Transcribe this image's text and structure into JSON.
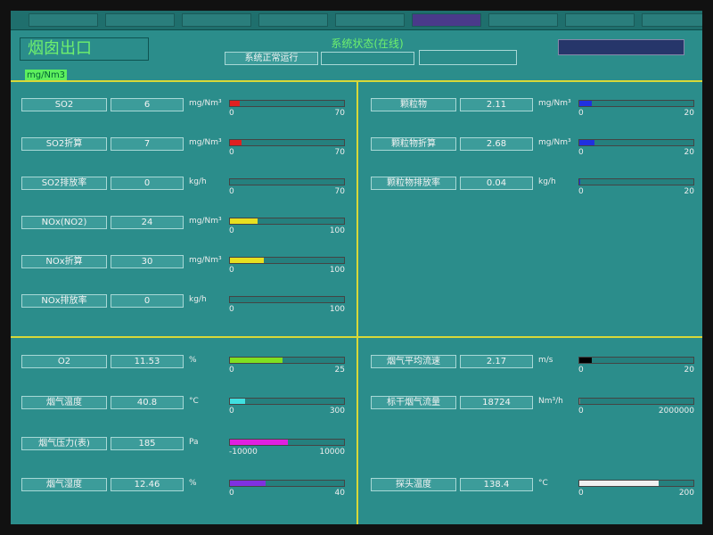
{
  "header": {
    "title": "烟囱出口",
    "status_title": "系统状态(在线)",
    "status": "系统正常运行",
    "unit_tag": "mg/Nm3"
  },
  "panels": [
    {
      "items": [
        {
          "label": "SO2",
          "value": 6,
          "unit": "mg/Nm³",
          "min": 0,
          "max": 70,
          "color": "#e02020"
        },
        {
          "label": "SO2折算",
          "value": 7,
          "unit": "mg/Nm³",
          "min": 0,
          "max": 70,
          "color": "#e02020"
        },
        {
          "label": "SO2排放率",
          "value": 0,
          "unit": "kg/h",
          "min": 0,
          "max": 70,
          "color": "#e02020"
        },
        {
          "label": "NOx(NO2)",
          "value": 24,
          "unit": "mg/Nm³",
          "min": 0,
          "max": 100,
          "color": "#e8e020"
        },
        {
          "label": "NOx折算",
          "value": 30,
          "unit": "mg/Nm³",
          "min": 0,
          "max": 100,
          "color": "#e8e020"
        },
        {
          "label": "NOx排放率",
          "value": 0,
          "unit": "kg/h",
          "min": 0,
          "max": 100,
          "color": "#e8e020"
        }
      ]
    },
    {
      "items": [
        {
          "label": "颗粒物",
          "value": 2.11,
          "unit": "mg/Nm³",
          "min": 0,
          "max": 20,
          "color": "#2030e0"
        },
        {
          "label": "颗粒物折算",
          "value": 2.68,
          "unit": "mg/Nm³",
          "min": 0,
          "max": 20,
          "color": "#2030e0"
        },
        {
          "label": "颗粒物排放率",
          "value": 0.04,
          "unit": "kg/h",
          "min": 0,
          "max": 20,
          "color": "#2030e0"
        }
      ]
    },
    {
      "items": [
        {
          "label": "O2",
          "value": 11.53,
          "unit": "%",
          "min": 0,
          "max": 25,
          "color": "#80e020"
        },
        {
          "label": "烟气温度",
          "value": 40.8,
          "unit": "°C",
          "min": 0,
          "max": 300,
          "color": "#40e0e0"
        },
        {
          "label": "烟气压力(表)",
          "value": 185,
          "unit": "Pa",
          "min": -10000,
          "max": 10000,
          "color": "#e020e0"
        },
        {
          "label": "烟气湿度",
          "value": 12.46,
          "unit": "%",
          "min": 0,
          "max": 40,
          "color": "#8030e0"
        }
      ]
    },
    {
      "items": [
        {
          "label": "烟气平均流速",
          "value": 2.17,
          "unit": "m/s",
          "min": 0,
          "max": 20,
          "color": "#000000"
        },
        {
          "label": "标干烟气流量",
          "value": 18724,
          "unit": "Nm³/h",
          "min": 0,
          "max": 2000000,
          "color": "#808080"
        },
        {
          "label": "探头温度",
          "value": 138.4,
          "unit": "°C",
          "min": 0,
          "max": 200,
          "color": "#f0f0f0"
        }
      ]
    }
  ]
}
